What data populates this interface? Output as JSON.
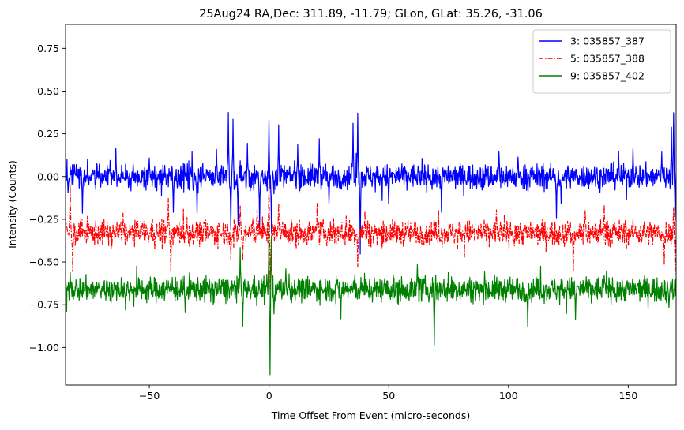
{
  "chart_data": {
    "type": "line",
    "title": "25Aug24 RA,Dec:  311.89, -11.79; GLon, GLat:   35.26, -31.06",
    "xlabel": "Time Offset From Event (micro-seconds)",
    "ylabel": "Intensity (Counts)",
    "xlim": [
      -85,
      170
    ],
    "ylim": [
      -1.22,
      0.89
    ],
    "xticks": [
      -50,
      0,
      50,
      100,
      150
    ],
    "xtick_labels": [
      "−50",
      "0",
      "50",
      "100",
      "150"
    ],
    "yticks": [
      0.75,
      0.5,
      0.25,
      0.0,
      -0.25,
      -0.5,
      -0.75,
      -1.0
    ],
    "ytick_labels": [
      "0.75",
      "0.50",
      "0.25",
      "0.00",
      "−0.25",
      "−0.50",
      "−0.75",
      "−1.00"
    ],
    "grid": false,
    "legend_position": "top-right",
    "series": [
      {
        "name": "3: 035857_387",
        "color": "#0000ff",
        "linestyle": "solid",
        "baseline": 0.0,
        "noise": 0.035,
        "spikes": [
          {
            "x": -84,
            "y": 0.1
          },
          {
            "x": -84,
            "y": -0.1
          },
          {
            "x": -78,
            "y": -0.2
          },
          {
            "x": -64,
            "y": 0.16
          },
          {
            "x": -50,
            "y": 0.12
          },
          {
            "x": -40,
            "y": -0.22
          },
          {
            "x": -30,
            "y": -0.21
          },
          {
            "x": -22,
            "y": 0.15
          },
          {
            "x": -17,
            "y": 0.38
          },
          {
            "x": -16,
            "y": -0.3
          },
          {
            "x": -15,
            "y": 0.33
          },
          {
            "x": -13,
            "y": -0.28
          },
          {
            "x": -9,
            "y": 0.2
          },
          {
            "x": -4,
            "y": -0.3
          },
          {
            "x": 0,
            "y": 0.32
          },
          {
            "x": 1,
            "y": -0.35
          },
          {
            "x": 2,
            "y": -0.1
          },
          {
            "x": 4,
            "y": 0.3
          },
          {
            "x": 12,
            "y": 0.18
          },
          {
            "x": 21,
            "y": 0.22
          },
          {
            "x": 25,
            "y": -0.15
          },
          {
            "x": 35,
            "y": 0.32
          },
          {
            "x": 37,
            "y": 0.37
          },
          {
            "x": 38,
            "y": -0.45
          },
          {
            "x": 50,
            "y": -0.16
          },
          {
            "x": 72,
            "y": -0.2
          },
          {
            "x": 96,
            "y": 0.15
          },
          {
            "x": 104,
            "y": 0.12
          },
          {
            "x": 120,
            "y": -0.25
          },
          {
            "x": 122,
            "y": -0.15
          },
          {
            "x": 146,
            "y": 0.15
          },
          {
            "x": 152,
            "y": 0.17
          },
          {
            "x": 164,
            "y": 0.14
          },
          {
            "x": 168,
            "y": 0.28
          },
          {
            "x": 169,
            "y": 0.38
          },
          {
            "x": 169.5,
            "y": -0.25
          }
        ]
      },
      {
        "name": "5: 035857_388",
        "color": "#ff0000",
        "linestyle": "dashdot",
        "baseline": -0.33,
        "noise": 0.035,
        "spikes": [
          {
            "x": -83,
            "y": -0.05
          },
          {
            "x": -82,
            "y": -0.55
          },
          {
            "x": -61,
            "y": -0.22
          },
          {
            "x": -42,
            "y": -0.12
          },
          {
            "x": -41,
            "y": -0.55
          },
          {
            "x": -16,
            "y": -0.47
          },
          {
            "x": -12,
            "y": -0.17
          },
          {
            "x": -11,
            "y": -0.5
          },
          {
            "x": -5,
            "y": -0.2
          },
          {
            "x": 0,
            "y": -0.02
          },
          {
            "x": 0.5,
            "y": -0.65
          },
          {
            "x": 4,
            "y": -0.15
          },
          {
            "x": 20,
            "y": -0.18
          },
          {
            "x": 37,
            "y": -0.52
          },
          {
            "x": 40,
            "y": -0.2
          },
          {
            "x": 95,
            "y": -0.2
          },
          {
            "x": 127,
            "y": -0.55
          },
          {
            "x": 132,
            "y": -0.2
          },
          {
            "x": 140,
            "y": -0.17
          },
          {
            "x": 165,
            "y": -0.5
          },
          {
            "x": 169,
            "y": -0.18
          },
          {
            "x": 169.5,
            "y": -0.57
          }
        ]
      },
      {
        "name": "9: 035857_402",
        "color": "#008000",
        "linestyle": "solid",
        "baseline": -0.66,
        "noise": 0.035,
        "spikes": [
          {
            "x": -83,
            "y": -0.55
          },
          {
            "x": -60,
            "y": -0.78
          },
          {
            "x": -35,
            "y": -0.8
          },
          {
            "x": -12,
            "y": -0.42
          },
          {
            "x": -11,
            "y": -0.88
          },
          {
            "x": -1,
            "y": -0.58
          },
          {
            "x": 0,
            "y": -0.26
          },
          {
            "x": 0.4,
            "y": -1.16
          },
          {
            "x": 1,
            "y": -0.35
          },
          {
            "x": 2,
            "y": -0.8
          },
          {
            "x": 7,
            "y": -0.55
          },
          {
            "x": 30,
            "y": -0.83
          },
          {
            "x": 62,
            "y": -0.52
          },
          {
            "x": 69,
            "y": -0.99
          },
          {
            "x": 90,
            "y": -0.57
          },
          {
            "x": 108,
            "y": -0.87
          },
          {
            "x": 128,
            "y": -0.82
          },
          {
            "x": 140,
            "y": -0.57
          },
          {
            "x": 167,
            "y": -0.78
          }
        ]
      }
    ]
  }
}
